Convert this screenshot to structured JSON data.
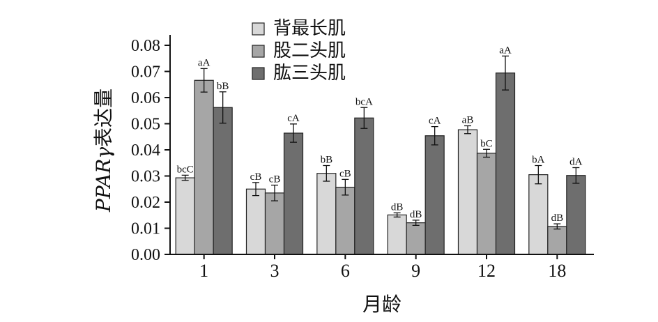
{
  "chart_data": {
    "type": "bar",
    "title": "",
    "xlabel": "月龄",
    "ylabel_italic": "PPARγ",
    "ylabel_suffix": "表达量",
    "ylim": [
      0,
      0.08
    ],
    "yticks": [
      "0.00",
      "0.01",
      "0.02",
      "0.03",
      "0.04",
      "0.05",
      "0.06",
      "0.07",
      "0.08"
    ],
    "categories": [
      "1",
      "3",
      "6",
      "9",
      "12",
      "18"
    ],
    "legend_position": "top-center",
    "grid": false,
    "series": [
      {
        "name": "背最长肌",
        "color": "#d8d8d8",
        "values": [
          0.0293,
          0.025,
          0.031,
          0.0151,
          0.0477,
          0.0305
        ],
        "errors": [
          0.001,
          0.0025,
          0.003,
          0.0008,
          0.0015,
          0.0035
        ],
        "labels": [
          "bcC",
          "cB",
          "bB",
          "dB",
          "aB",
          "bA"
        ]
      },
      {
        "name": "股二头肌",
        "color": "#a6a6a6",
        "values": [
          0.0666,
          0.0235,
          0.0257,
          0.0121,
          0.0387,
          0.0107
        ],
        "errors": [
          0.0045,
          0.003,
          0.003,
          0.001,
          0.0015,
          0.001
        ],
        "labels": [
          "aA",
          "cB",
          "cB",
          "dB",
          "bC",
          "dB"
        ]
      },
      {
        "name": "肱三头肌",
        "color": "#6e6e6e",
        "values": [
          0.0562,
          0.0464,
          0.0522,
          0.0454,
          0.0694,
          0.0302
        ],
        "errors": [
          0.006,
          0.0035,
          0.004,
          0.0035,
          0.0065,
          0.003
        ],
        "labels": [
          "bB",
          "cA",
          "bcA",
          "cA",
          "aA",
          "dA"
        ]
      }
    ]
  }
}
